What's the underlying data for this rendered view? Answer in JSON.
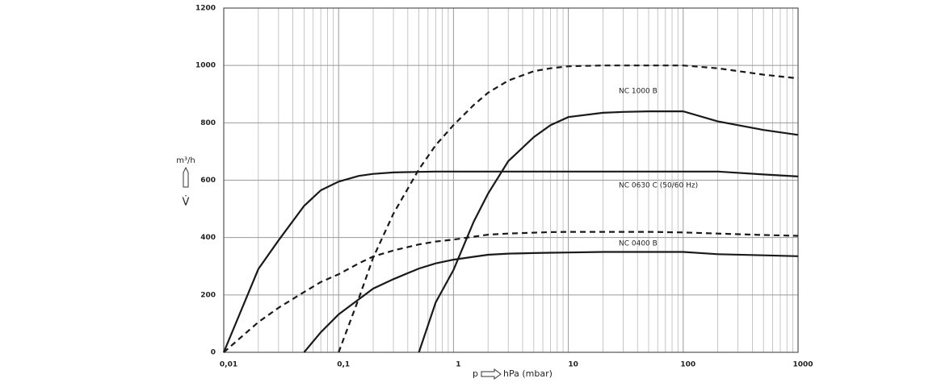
{
  "chart_data": {
    "type": "line",
    "x": [
      0.01,
      0.02,
      0.03,
      0.05,
      0.07,
      0.1,
      0.15,
      0.2,
      0.3,
      0.5,
      0.7,
      1,
      1.5,
      2,
      3,
      5,
      7,
      10,
      20,
      30,
      50,
      100,
      200,
      500,
      1000
    ],
    "xlim": [
      0.01,
      1000
    ],
    "xscale": "log",
    "xticks": [
      {
        "value": 0.01,
        "label": "0,01"
      },
      {
        "value": 0.1,
        "label": "0,1"
      },
      1,
      10,
      100,
      1000
    ],
    "ylim": [
      0,
      1200
    ],
    "yticks": [
      0,
      200,
      400,
      600,
      800,
      1000,
      1200
    ],
    "grid": true,
    "minor_grid": true,
    "y_label": "m³/h",
    "y_symbol": "V̇",
    "x_label_left": "p",
    "x_label_right": "hPa (mbar)",
    "annotations": [
      "NC 1000 B",
      "NC 0630 C (50/60 Hz)",
      "NC 0400 B"
    ],
    "series": [
      {
        "color": "#1a1a1a",
        "dashed": true,
        "values": [
          null,
          null,
          null,
          null,
          null,
          0,
          188,
          330,
          483,
          638,
          722,
          792,
          862,
          905,
          947,
          980,
          990,
          997,
          1000,
          1000,
          1000,
          1000,
          990,
          968,
          955
        ]
      },
      {
        "color": "#1a1a1a",
        "dashed": false,
        "values": [
          null,
          null,
          null,
          null,
          null,
          null,
          null,
          null,
          null,
          0,
          174,
          287,
          455,
          553,
          666,
          750,
          792,
          820,
          835,
          838,
          840,
          840,
          805,
          775,
          758
        ]
      },
      {
        "color": "#1a1a1a",
        "dashed": false,
        "values": [
          0,
          290,
          390,
          510,
          565,
          595,
          615,
          622,
          627,
          629,
          630,
          630,
          630,
          630,
          630,
          630,
          630,
          630,
          630,
          630,
          630,
          630,
          630,
          620,
          613
        ]
      },
      {
        "color": "#1a1a1a",
        "dashed": true,
        "values": [
          0,
          105,
          155,
          210,
          245,
          272,
          310,
          334,
          355,
          376,
          386,
          393,
          403,
          410,
          414,
          417,
          419,
          420,
          420,
          420,
          420,
          418,
          414,
          409,
          406
        ]
      },
      {
        "color": "#1a1a1a",
        "dashed": false,
        "values": [
          null,
          null,
          null,
          0,
          70,
          132,
          185,
          222,
          255,
          292,
          310,
          323,
          333,
          340,
          344,
          346,
          347,
          348,
          350,
          350,
          350,
          350,
          342,
          338,
          335
        ]
      }
    ]
  }
}
